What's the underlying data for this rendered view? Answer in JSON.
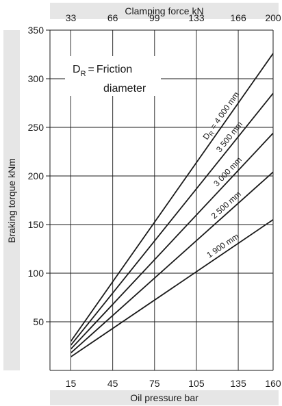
{
  "chart_data": {
    "type": "line",
    "top_axis_title": "Clamping force kN",
    "xlabel": "Oil pressure bar",
    "ylabel": "Braking torque kNm",
    "top_ticks": [
      "33",
      "66",
      "99",
      "133",
      "166",
      "200"
    ],
    "x_ticks": [
      "15",
      "45",
      "75",
      "105",
      "135",
      "160"
    ],
    "y_ticks": [
      "50",
      "100",
      "150",
      "200",
      "250",
      "300",
      "350"
    ],
    "xlim": [
      0,
      160
    ],
    "ylim": [
      0,
      350
    ],
    "grid": true,
    "legend": {
      "symbol": "D",
      "subscript": "R",
      "equals": "=",
      "line1": "Friction",
      "line2": "diameter"
    },
    "series": [
      {
        "name": "D_R = 4 000 mm",
        "label_main": "D",
        "label_sub": "R",
        "label_text": " = 4 000 mm",
        "x": [
          15,
          160
        ],
        "y": [
          30,
          326
        ]
      },
      {
        "name": "3 500 mm",
        "label_text": "3 500 mm",
        "x": [
          15,
          160
        ],
        "y": [
          26,
          285
        ]
      },
      {
        "name": "3 000 mm",
        "label_text": "3 000 mm",
        "x": [
          15,
          160
        ],
        "y": [
          22,
          244
        ]
      },
      {
        "name": "2 500 mm",
        "label_text": "2 500 mm",
        "x": [
          15,
          160
        ],
        "y": [
          18,
          204
        ]
      },
      {
        "name": "1 900 mm",
        "label_text": "1 900 mm",
        "x": [
          15,
          160
        ],
        "y": [
          14,
          155
        ]
      }
    ]
  }
}
